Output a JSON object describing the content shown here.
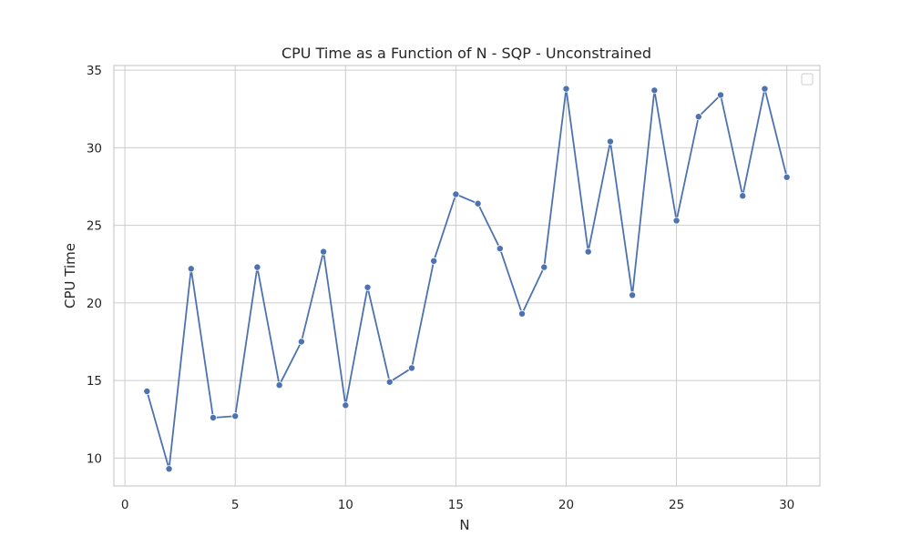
{
  "chart_data": {
    "type": "line",
    "title": "CPU Time as a Function of N - SQP - Unconstrained",
    "xlabel": "N",
    "ylabel": "CPU Time",
    "xlim": [
      -0.5,
      31.5
    ],
    "ylim": [
      8.2,
      35.3
    ],
    "xticks": [
      0,
      5,
      10,
      15,
      20,
      25,
      30
    ],
    "yticks": [
      10,
      15,
      20,
      25,
      30,
      35
    ],
    "grid": true,
    "legend": "top-right",
    "line_color": "#4c72b0",
    "grid_color": "#cccccc",
    "series": [
      {
        "x": [
          1,
          2,
          3,
          4,
          5,
          6,
          7,
          8,
          9,
          10,
          11,
          12,
          13,
          14,
          15,
          16,
          17,
          18,
          19,
          20,
          21,
          22,
          23,
          24,
          25,
          26,
          27,
          28,
          29,
          30
        ],
        "values": [
          14.3,
          9.3,
          22.2,
          12.6,
          12.7,
          22.3,
          14.7,
          17.5,
          23.3,
          13.4,
          21.0,
          14.9,
          15.8,
          22.7,
          27.0,
          26.4,
          23.5,
          19.3,
          22.3,
          33.8,
          23.3,
          30.4,
          20.5,
          33.7,
          25.3,
          32.0,
          33.4,
          26.9,
          33.8,
          28.1
        ]
      }
    ]
  }
}
